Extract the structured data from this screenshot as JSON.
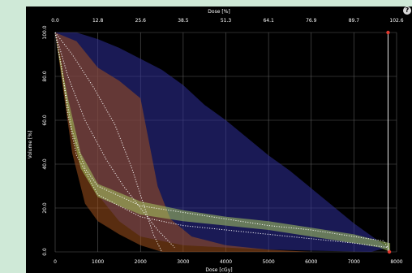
{
  "chart_data": {
    "type": "line",
    "xlabel_top": "Dose [%]",
    "xlabel_bottom": "Dose [cGy]",
    "ylabel": "Volume [%]",
    "x_bottom_ticks": [
      0,
      1000,
      2000,
      3000,
      4000,
      5000,
      6000,
      7000,
      8000
    ],
    "x_top_ticks": [
      "0.0",
      "12.8",
      "25.6",
      "38.5",
      "51.3",
      "64.1",
      "76.9",
      "89.7",
      "102.6"
    ],
    "y_ticks": [
      "0.0",
      "20.0",
      "40.0",
      "60.0",
      "80.0",
      "100.0"
    ],
    "xlim": [
      0,
      8000
    ],
    "ylim": [
      0,
      100
    ],
    "grid": true,
    "colors": {
      "blue": "#2f2f9a",
      "orange": "#a3521e",
      "green": "#a7c860",
      "dots": "#ffffff",
      "marker": "#e23a2f"
    },
    "bands": [
      {
        "color": "blue",
        "upper": [
          [
            0,
            100
          ],
          [
            500,
            100
          ],
          [
            1000,
            97
          ],
          [
            1500,
            93
          ],
          [
            2000,
            88
          ],
          [
            2500,
            83
          ],
          [
            3000,
            76
          ],
          [
            3500,
            67
          ],
          [
            4000,
            60
          ],
          [
            4500,
            52
          ],
          [
            5000,
            44
          ],
          [
            5500,
            37
          ],
          [
            6000,
            29
          ],
          [
            6500,
            21
          ],
          [
            7000,
            13
          ],
          [
            7500,
            6
          ],
          [
            7800,
            2
          ]
        ],
        "lower": [
          [
            7400,
            0
          ],
          [
            5000,
            1
          ],
          [
            3000,
            3
          ],
          [
            2000,
            7
          ],
          [
            1500,
            14
          ],
          [
            1000,
            26
          ],
          [
            700,
            38
          ],
          [
            500,
            50
          ],
          [
            300,
            68
          ],
          [
            150,
            88
          ],
          [
            0,
            100
          ]
        ]
      },
      {
        "color": "orange",
        "upper": [
          [
            0,
            100
          ],
          [
            500,
            96
          ],
          [
            1000,
            84
          ],
          [
            1500,
            78
          ],
          [
            2000,
            70
          ],
          [
            2200,
            50
          ],
          [
            2400,
            30
          ],
          [
            2700,
            15
          ],
          [
            3200,
            7
          ],
          [
            4000,
            3
          ],
          [
            5000,
            1
          ],
          [
            6000,
            0
          ]
        ],
        "lower": [
          [
            2500,
            0
          ],
          [
            2000,
            3
          ],
          [
            1500,
            8
          ],
          [
            1000,
            14
          ],
          [
            700,
            22
          ],
          [
            400,
            45
          ],
          [
            200,
            72
          ],
          [
            0,
            100
          ]
        ]
      },
      {
        "color": "green",
        "upper": [
          [
            0,
            100
          ],
          [
            300,
            70
          ],
          [
            600,
            45
          ],
          [
            1000,
            31
          ],
          [
            2000,
            23
          ],
          [
            3000,
            19
          ],
          [
            4000,
            16
          ],
          [
            5000,
            14
          ],
          [
            6000,
            11
          ],
          [
            7000,
            8
          ],
          [
            7600,
            5
          ],
          [
            7850,
            4
          ]
        ],
        "lower": [
          [
            7850,
            0
          ],
          [
            7600,
            2
          ],
          [
            7000,
            4
          ],
          [
            6000,
            7
          ],
          [
            5000,
            10
          ],
          [
            4000,
            12
          ],
          [
            3000,
            14
          ],
          [
            2000,
            17
          ],
          [
            1000,
            25
          ],
          [
            600,
            38
          ],
          [
            300,
            62
          ],
          [
            0,
            100
          ]
        ]
      }
    ],
    "dotted_curves": [
      [
        [
          0,
          100
        ],
        [
          200,
          78
        ],
        [
          400,
          55
        ],
        [
          700,
          38
        ],
        [
          1000,
          30
        ],
        [
          2000,
          21
        ],
        [
          3000,
          18
        ],
        [
          4000,
          15
        ],
        [
          5000,
          12
        ],
        [
          6000,
          10
        ],
        [
          7000,
          7
        ],
        [
          7700,
          5
        ],
        [
          7850,
          0
        ]
      ],
      [
        [
          0,
          100
        ],
        [
          150,
          85
        ],
        [
          300,
          62
        ],
        [
          500,
          44
        ],
        [
          1000,
          26
        ],
        [
          2000,
          16
        ],
        [
          3000,
          12
        ],
        [
          4000,
          10
        ],
        [
          5000,
          8
        ],
        [
          6000,
          6
        ],
        [
          7000,
          4
        ],
        [
          7800,
          2
        ],
        [
          7850,
          0
        ]
      ],
      [
        [
          0,
          100
        ],
        [
          400,
          90
        ],
        [
          900,
          75
        ],
        [
          1400,
          58
        ],
        [
          1800,
          38
        ],
        [
          2100,
          20
        ],
        [
          2300,
          8
        ],
        [
          2500,
          0
        ]
      ],
      [
        [
          0,
          100
        ],
        [
          300,
          80
        ],
        [
          700,
          60
        ],
        [
          1200,
          42
        ],
        [
          1600,
          30
        ],
        [
          2000,
          20
        ],
        [
          2400,
          10
        ],
        [
          2800,
          2
        ]
      ]
    ],
    "markers": [
      [
        7800,
        100
      ],
      [
        7830,
        0
      ]
    ]
  }
}
